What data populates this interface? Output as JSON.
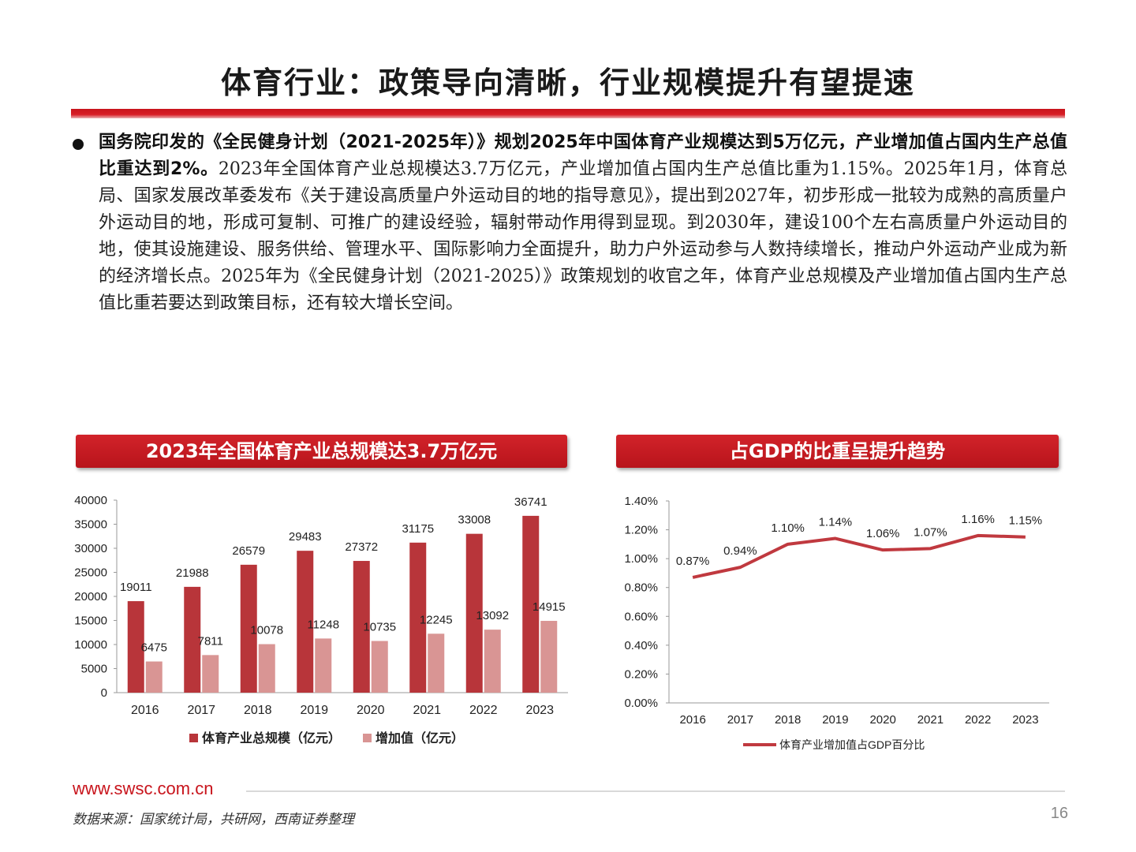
{
  "page": {
    "title": "体育行业：政策导向清晰，行业规模提升有望提速",
    "paragraph_bold": "国务院印发的《全民健身计划（2021-2025年）》规划2025年中国体育产业规模达到5万亿元，产业增加值占国内生产总值比重达到2%。",
    "paragraph_rest": "2023年全国体育产业总规模达3.7万亿元，产业增加值占国内生产总值比重为1.15%。2025年1月，体育总局、国家发展改革委发布《关于建设高质量户外运动目的地的指导意见》，提出到2027年，初步形成一批较为成熟的高质量户外运动目的地，形成可复制、可推广的建设经验，辐射带动作用得到显现。到2030年，建设100个左右高质量户外运动目的地，使其设施建设、服务供给、管理水平、国际影响力全面提升，助力户外运动参与人数持续增长，推动户外运动产业成为新的经济增长点。2025年为《全民健身计划（2021-2025）》政策规划的收官之年，体育产业总规模及产业增加值占国内生产总值比重若要达到政策目标，还有较大增长空间。",
    "left_panel_title": "2023年全国体育产业总规模达3.7万亿元",
    "right_panel_title": "占GDP的比重呈提升趋势",
    "footer_url": "www.swsc.com.cn",
    "source": "数据来源：国家统计局，共研网，西南证券整理",
    "page_number": "16"
  },
  "colors": {
    "accent": "#c8141c",
    "bar_total": "#b8353a",
    "bar_added": "#d99594",
    "line": "#c0393f"
  },
  "chart_data": [
    {
      "type": "bar",
      "categories": [
        "2016",
        "2017",
        "2018",
        "2019",
        "2020",
        "2021",
        "2022",
        "2023"
      ],
      "series": [
        {
          "name": "体育产业总规模（亿元）",
          "values": [
            19011,
            21988,
            26579,
            29483,
            27372,
            31175,
            33008,
            36741
          ]
        },
        {
          "name": "增加值（亿元）",
          "values": [
            6475,
            7811,
            10078,
            11248,
            10735,
            12245,
            13092,
            14915
          ]
        }
      ],
      "yticks": [
        "0",
        "5000",
        "10000",
        "15000",
        "20000",
        "25000",
        "30000",
        "35000",
        "40000"
      ],
      "ylim": [
        0,
        40000
      ],
      "legend": "bottom"
    },
    {
      "type": "line",
      "categories": [
        "2016",
        "2017",
        "2018",
        "2019",
        "2020",
        "2021",
        "2022",
        "2023"
      ],
      "series": [
        {
          "name": "体育产业增加值占GDP百分比",
          "values": [
            0.87,
            0.94,
            1.1,
            1.14,
            1.06,
            1.07,
            1.16,
            1.15
          ],
          "labels": [
            "0.87%",
            "0.94%",
            "1.10%",
            "1.14%",
            "1.06%",
            "1.07%",
            "1.16%",
            "1.15%"
          ]
        }
      ],
      "yticks": [
        "0.00%",
        "0.20%",
        "0.40%",
        "0.60%",
        "0.80%",
        "1.00%",
        "1.20%",
        "1.40%"
      ],
      "ylim": [
        0,
        1.4
      ],
      "legend": "bottom"
    }
  ]
}
